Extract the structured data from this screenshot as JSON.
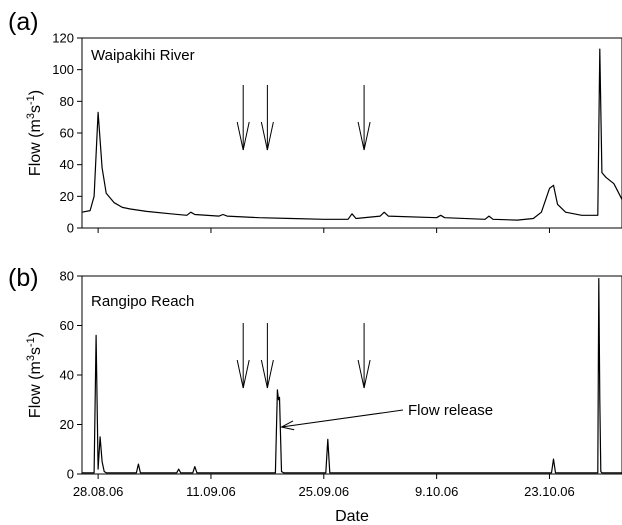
{
  "chart_data": [
    {
      "type": "line",
      "panel_label": "(a)",
      "title": "Waipakihi River",
      "xlabel": "",
      "ylabel": "Flow (m³s⁻¹)",
      "ylabel_parts": [
        "Flow (m",
        "3",
        "s",
        "-1",
        ")"
      ],
      "ylim": [
        0,
        120
      ],
      "yticks": [
        0,
        20,
        40,
        60,
        80,
        100,
        120
      ],
      "grid": false,
      "xlim": [
        "2006-08-26",
        "2006-11-01"
      ],
      "event_arrows_x": [
        "2006-09-15",
        "2006-09-18",
        "2006-09-30"
      ],
      "series": [
        {
          "x": [
            "2006-08-26",
            "2006-08-27",
            "2006-08-27 12:00",
            "2006-08-28",
            "2006-08-28 12:00",
            "2006-08-29",
            "2006-08-30",
            "2006-08-31",
            "2006-09-01",
            "2006-09-03",
            "2006-09-06",
            "2006-09-08",
            "2006-09-08 12:00",
            "2006-09-09",
            "2006-09-12",
            "2006-09-12 12:00",
            "2006-09-13",
            "2006-09-17",
            "2006-09-21",
            "2006-09-25",
            "2006-09-28",
            "2006-09-28 12:00",
            "2006-09-29",
            "2006-10-02",
            "2006-10-02 12:00",
            "2006-10-03",
            "2006-10-09",
            "2006-10-09 12:00",
            "2006-10-10",
            "2006-10-15",
            "2006-10-15 12:00",
            "2006-10-16",
            "2006-10-19",
            "2006-10-21",
            "2006-10-22",
            "2006-10-23",
            "2006-10-23 12:00",
            "2006-10-24",
            "2006-10-25",
            "2006-10-27",
            "2006-10-29",
            "2006-10-29 06:00",
            "2006-10-29 12:00",
            "2006-10-30",
            "2006-10-31",
            "2006-11-01"
          ],
          "y": [
            10,
            11,
            20,
            73,
            38,
            22,
            16,
            13,
            12,
            10.5,
            9,
            8,
            10,
            8.5,
            7.5,
            8.5,
            7.5,
            6.5,
            6,
            5.5,
            5.5,
            9,
            6,
            7.5,
            10,
            7.5,
            6.5,
            8,
            6.5,
            5.5,
            7.5,
            5.5,
            5,
            6,
            10,
            25,
            27,
            15,
            10,
            8,
            8,
            113,
            35,
            32,
            28,
            18
          ]
        }
      ]
    },
    {
      "type": "line",
      "panel_label": "(b)",
      "title": "Rangipo Reach",
      "xlabel": "Date",
      "ylabel": "Flow (m³s⁻¹)",
      "ylabel_parts": [
        "Flow (m",
        "3",
        "s",
        "-1",
        ")"
      ],
      "ylim": [
        0,
        80
      ],
      "yticks": [
        0,
        20,
        40,
        60,
        80
      ],
      "grid": false,
      "xlim": [
        "2006-08-26",
        "2006-11-01"
      ],
      "xticks": [
        "2006-08-28",
        "2006-09-11",
        "2006-09-25",
        "2006-10-09",
        "2006-10-23"
      ],
      "xtick_labels": [
        "28.08.06",
        "11.09.06",
        "25.09.06",
        "9.10.06",
        "23.10.06"
      ],
      "event_arrows_x": [
        "2006-09-15",
        "2006-09-18",
        "2006-09-30"
      ],
      "annotations": [
        {
          "text": "Flow release",
          "x": "2006-09-19 18:00",
          "y": 19
        }
      ],
      "series": [
        {
          "x": [
            "2006-08-26",
            "2006-08-27 12:00",
            "2006-08-27 18:00",
            "2006-08-28",
            "2006-08-28 06:00",
            "2006-08-28 12:00",
            "2006-08-28 18:00",
            "2006-08-29",
            "2006-09-01 18:00",
            "2006-09-02",
            "2006-09-02 06:00",
            "2006-09-06 18:00",
            "2006-09-07",
            "2006-09-07 06:00",
            "2006-09-08 18:00",
            "2006-09-09",
            "2006-09-09 06:00",
            "2006-09-19",
            "2006-09-19 06:00",
            "2006-09-19 09:00",
            "2006-09-19 12:00",
            "2006-09-19 18:00",
            "2006-09-20",
            "2006-09-25 06:00",
            "2006-09-25 12:00",
            "2006-09-25 18:00",
            "2006-10-23 06:00",
            "2006-10-23 12:00",
            "2006-10-23 18:00",
            "2006-10-29",
            "2006-10-29 03:00",
            "2006-10-29 06:00",
            "2006-10-29 09:00",
            "2006-10-29 12:00",
            "2006-11-01"
          ],
          "y": [
            0.5,
            0.5,
            56,
            2,
            15,
            5,
            1,
            0.5,
            0.5,
            4,
            0.5,
            0.5,
            2,
            0.5,
            0.5,
            3,
            0.5,
            0.5,
            34,
            30,
            31,
            1,
            0.5,
            0.5,
            14,
            0.5,
            0.5,
            6,
            0.5,
            0.5,
            79,
            30,
            1,
            0.5,
            0.5
          ]
        }
      ]
    }
  ]
}
